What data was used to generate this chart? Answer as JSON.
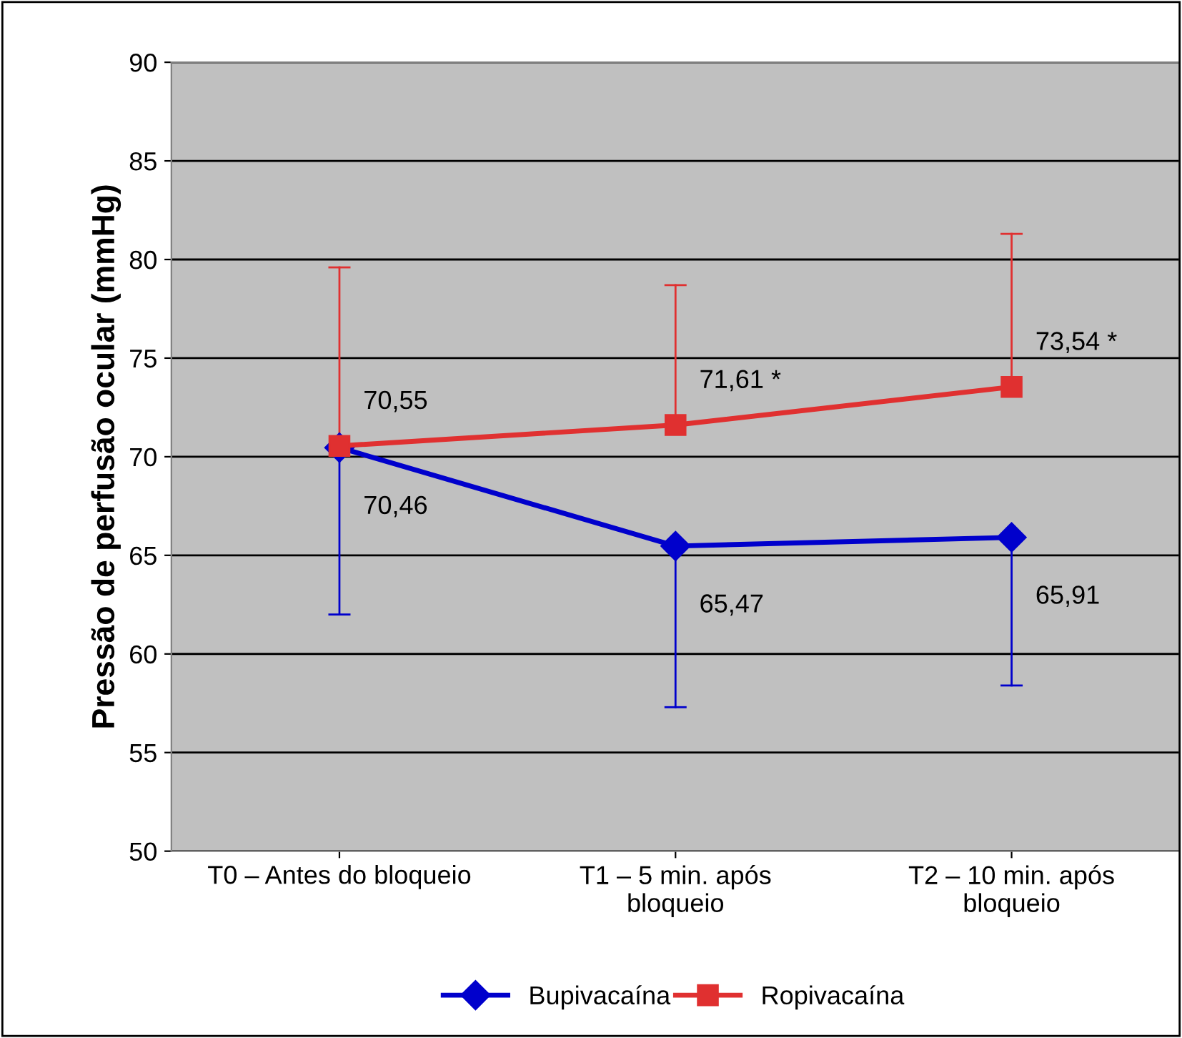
{
  "chart_data": {
    "type": "line",
    "ylabel": "Pressão de perfusão ocular (mmHg)",
    "categories": [
      "T0 – Antes do bloqueio",
      "T1 – 5 min. após bloqueio",
      "T2 – 10 min. após bloqueio"
    ],
    "series": [
      {
        "name": "Bupivacaína",
        "color": "#0000cc",
        "marker": "diamond",
        "values": [
          70.46,
          65.47,
          65.91
        ],
        "errors": [
          [
            62.0,
            70.46
          ],
          [
            57.3,
            65.47
          ],
          [
            58.4,
            65.91
          ]
        ],
        "value_labels": [
          "70,46",
          "65,47",
          "65,91"
        ]
      },
      {
        "name": "Ropivacaína",
        "color": "#e03030",
        "marker": "square",
        "values": [
          70.55,
          71.61,
          73.54
        ],
        "errors": [
          [
            70.55,
            79.6
          ],
          [
            71.61,
            78.7
          ],
          [
            73.54,
            81.3
          ]
        ],
        "value_labels": [
          "70,55",
          "71,61 *",
          "73,54 *"
        ]
      }
    ],
    "ylim": [
      50,
      90
    ],
    "yticks": [
      50,
      55,
      60,
      65,
      70,
      75,
      80,
      85,
      90
    ],
    "grid": "y",
    "legend": "bottom",
    "line_style": "solid"
  }
}
